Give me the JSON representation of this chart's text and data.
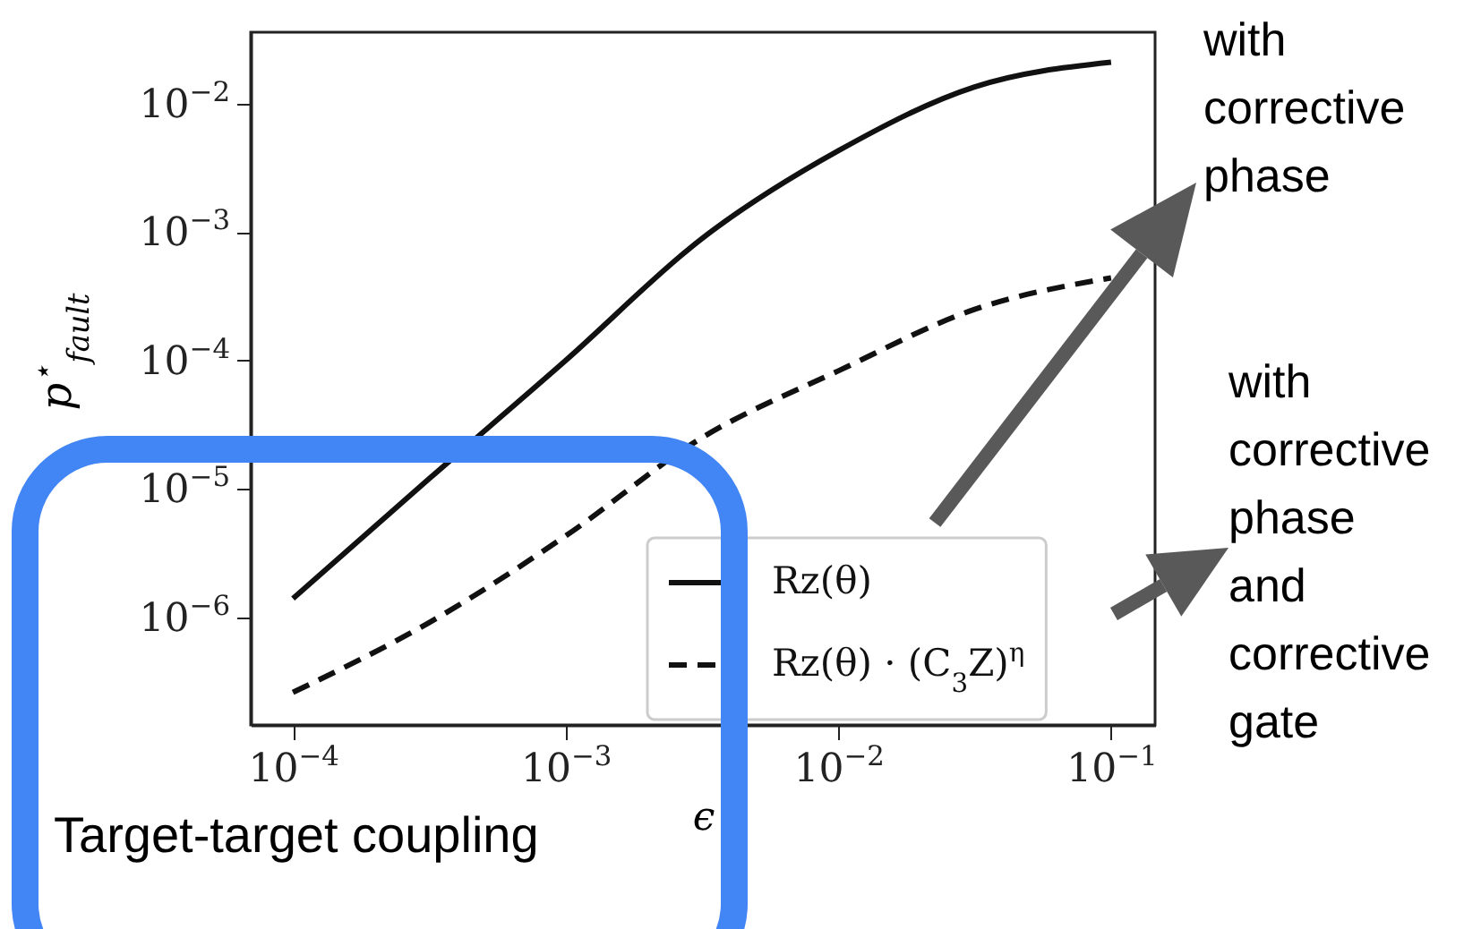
{
  "chart_data": {
    "type": "line",
    "xlabel": "ϵ",
    "ylabel": "p$^{⋆}$$_{fault}$",
    "x": [
      0.0001,
      0.000316,
      0.001,
      0.00316,
      0.01,
      0.0316,
      0.1
    ],
    "series": [
      {
        "name": "Rz(θ)",
        "color": "#111111",
        "line_style": "solid",
        "values": [
          1.4e-06,
          1.2e-05,
          0.0001,
          0.00089,
          0.0043,
          0.0135,
          0.021
        ]
      },
      {
        "name": "Rz(θ) · (C$_{3}$Z)$^{η}$",
        "color": "#111111",
        "line_style": "dashed",
        "values": [
          2.6e-07,
          9.1e-07,
          4.3e-06,
          2.5e-05,
          8.3e-05,
          0.00025,
          0.00044
        ]
      }
    ],
    "log": "xy",
    "xlim": [
      7e-05,
      0.145
    ],
    "ylim": [
      1.45e-07,
      0.036
    ],
    "xticks": [
      {
        "value": 0.0001,
        "label": "10$^{−4}$"
      },
      {
        "value": 0.001,
        "label": "10$^{−3}$"
      },
      {
        "value": 0.01,
        "label": "10$^{−2}$"
      },
      {
        "value": 0.1,
        "label": "10$^{−1}$"
      }
    ],
    "yticks": [
      {
        "value": 1e-06,
        "label": "10$^{−6}$"
      },
      {
        "value": 1e-05,
        "label": "10$^{−5}$"
      },
      {
        "value": 0.0001,
        "label": "10$^{−4}$"
      },
      {
        "value": 0.001,
        "label": "10$^{−3}$"
      },
      {
        "value": 0.01,
        "label": "10$^{−2}$"
      }
    ],
    "legend": "bottom right",
    "annotations": [
      "with corrective phase",
      "with corrective phase and corrective gate",
      "Target-target coupling"
    ]
  }
}
